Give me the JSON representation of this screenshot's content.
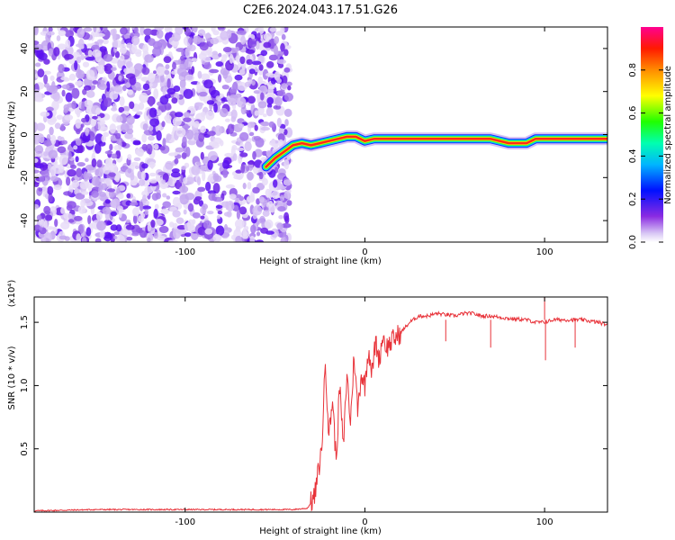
{
  "title": "C2E6.2024.043.17.51.G26",
  "chart_data": [
    {
      "type": "heatmap",
      "xlabel": "Height of straight line (km)",
      "ylabel": "Frequency (Hz)",
      "xlim": [
        -184,
        135
      ],
      "ylim": [
        -50,
        50
      ],
      "x_ticks": [
        -100,
        0,
        100
      ],
      "y_ticks": [
        -40,
        -20,
        0,
        20,
        40
      ],
      "noise_region_x": [
        -184,
        -42
      ],
      "signal_track": {
        "x": [
          -55,
          -50,
          -45,
          -40,
          -35,
          -30,
          -25,
          -20,
          -15,
          -10,
          -5,
          0,
          5,
          10,
          20,
          40,
          60,
          70,
          75,
          80,
          90,
          95,
          100,
          110,
          120,
          135
        ],
        "frequency": [
          -15,
          -11,
          -8,
          -5,
          -4,
          -5,
          -4,
          -3,
          -2,
          -1,
          -1,
          -3,
          -2,
          -2,
          -2,
          -2,
          -2,
          -2,
          -3,
          -4,
          -4,
          -2,
          -2,
          -2,
          -2,
          -2
        ]
      },
      "colorbar": {
        "label": "Normalized spectral amplitude",
        "ticks": [
          0.0,
          0.2,
          0.4,
          0.6,
          0.8
        ],
        "range": [
          0,
          1
        ]
      },
      "grid": false
    },
    {
      "type": "line",
      "xlabel": "Height of straight line (km)",
      "ylabel": "SNR (10 * v/v)",
      "y_multiplier": "(x10⁴)",
      "xlim": [
        -184,
        135
      ],
      "ylim": [
        0,
        1.7
      ],
      "x_ticks": [
        -100,
        0,
        100
      ],
      "y_ticks": [
        0.5,
        1.0,
        1.5
      ],
      "series": [
        {
          "color": "#e8333a",
          "x": [
            -184,
            -150,
            -120,
            -100,
            -80,
            -60,
            -40,
            -32,
            -28,
            -24,
            -22,
            -20,
            -18,
            -16,
            -14,
            -12,
            -10,
            -8,
            -6,
            -4,
            -2,
            0,
            2,
            4,
            6,
            8,
            10,
            12,
            15,
            20,
            25,
            30,
            35,
            40,
            45,
            50,
            55,
            60,
            65,
            70,
            80,
            90,
            95,
            100,
            105,
            110,
            120,
            130,
            135
          ],
          "y": [
            0.01,
            0.02,
            0.02,
            0.02,
            0.02,
            0.02,
            0.02,
            0.03,
            0.12,
            0.5,
            1.2,
            0.6,
            0.9,
            0.4,
            1.0,
            0.5,
            1.1,
            0.7,
            1.25,
            0.8,
            1.1,
            1.0,
            1.3,
            1.1,
            1.35,
            1.2,
            1.4,
            1.3,
            1.35,
            1.42,
            1.5,
            1.55,
            1.55,
            1.57,
            1.56,
            1.55,
            1.57,
            1.57,
            1.55,
            1.55,
            1.53,
            1.52,
            1.5,
            1.5,
            1.52,
            1.52,
            1.52,
            1.5,
            1.48
          ]
        }
      ],
      "spikes": [
        {
          "x": 45,
          "y": 1.35
        },
        {
          "x": 70,
          "y": 1.3
        },
        {
          "x": 100,
          "y": 1.7
        },
        {
          "x": 100.5,
          "y": 1.2
        },
        {
          "x": 117,
          "y": 1.3
        }
      ],
      "grid": false
    }
  ]
}
